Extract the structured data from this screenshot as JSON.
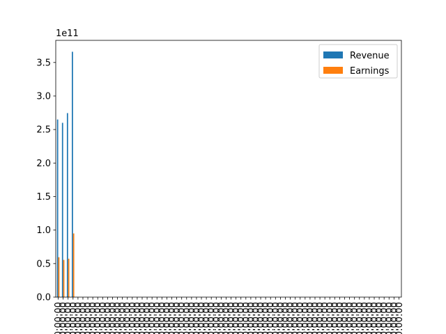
{
  "chart_data": {
    "type": "bar",
    "title": "",
    "xlabel": "",
    "ylabel": "",
    "y_offset_label": "1e11",
    "ylim": [
      0,
      383000000000.0
    ],
    "yticks": [
      0,
      50000000000.0,
      100000000000.0,
      150000000000.0,
      200000000000.0,
      250000000000.0,
      300000000000.0,
      350000000000.0
    ],
    "ytick_labels": [
      "0.0",
      "0.5",
      "1.0",
      "1.5",
      "2.0",
      "2.5",
      "3.0",
      "3.5"
    ],
    "grid": false,
    "legend_position": "upper-right",
    "x_tick_label": "00:00:00",
    "x_category_count": 70,
    "series": [
      {
        "name": "Revenue",
        "color": "#1f77b4",
        "values": [
          265000000000.0,
          260000000000.0,
          274500000000.0,
          366000000000.0
        ]
      },
      {
        "name": "Earnings",
        "color": "#ff7f0e",
        "values": [
          59500000000.0,
          55500000000.0,
          57300000000.0,
          95000000000.0
        ]
      }
    ]
  }
}
